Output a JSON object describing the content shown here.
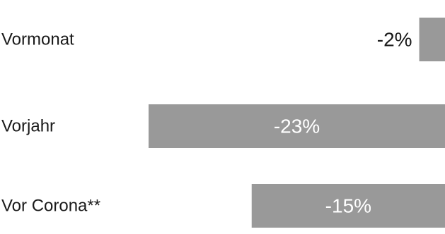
{
  "chart_data": {
    "type": "bar",
    "orientation": "horizontal",
    "categories": [
      "Vormonat",
      "Vorjahr",
      "Vor Corona**"
    ],
    "values": [
      -2,
      -23,
      -15
    ],
    "value_labels": [
      "-2%",
      "-23%",
      "-15%"
    ],
    "xlim": [
      -30,
      0
    ],
    "grid": false,
    "legend": "none",
    "colors": {
      "bar": "#999999",
      "label_inside": "#ffffff",
      "label_outside": "#1a1a1a",
      "category_text": "#1a1a1a"
    }
  }
}
